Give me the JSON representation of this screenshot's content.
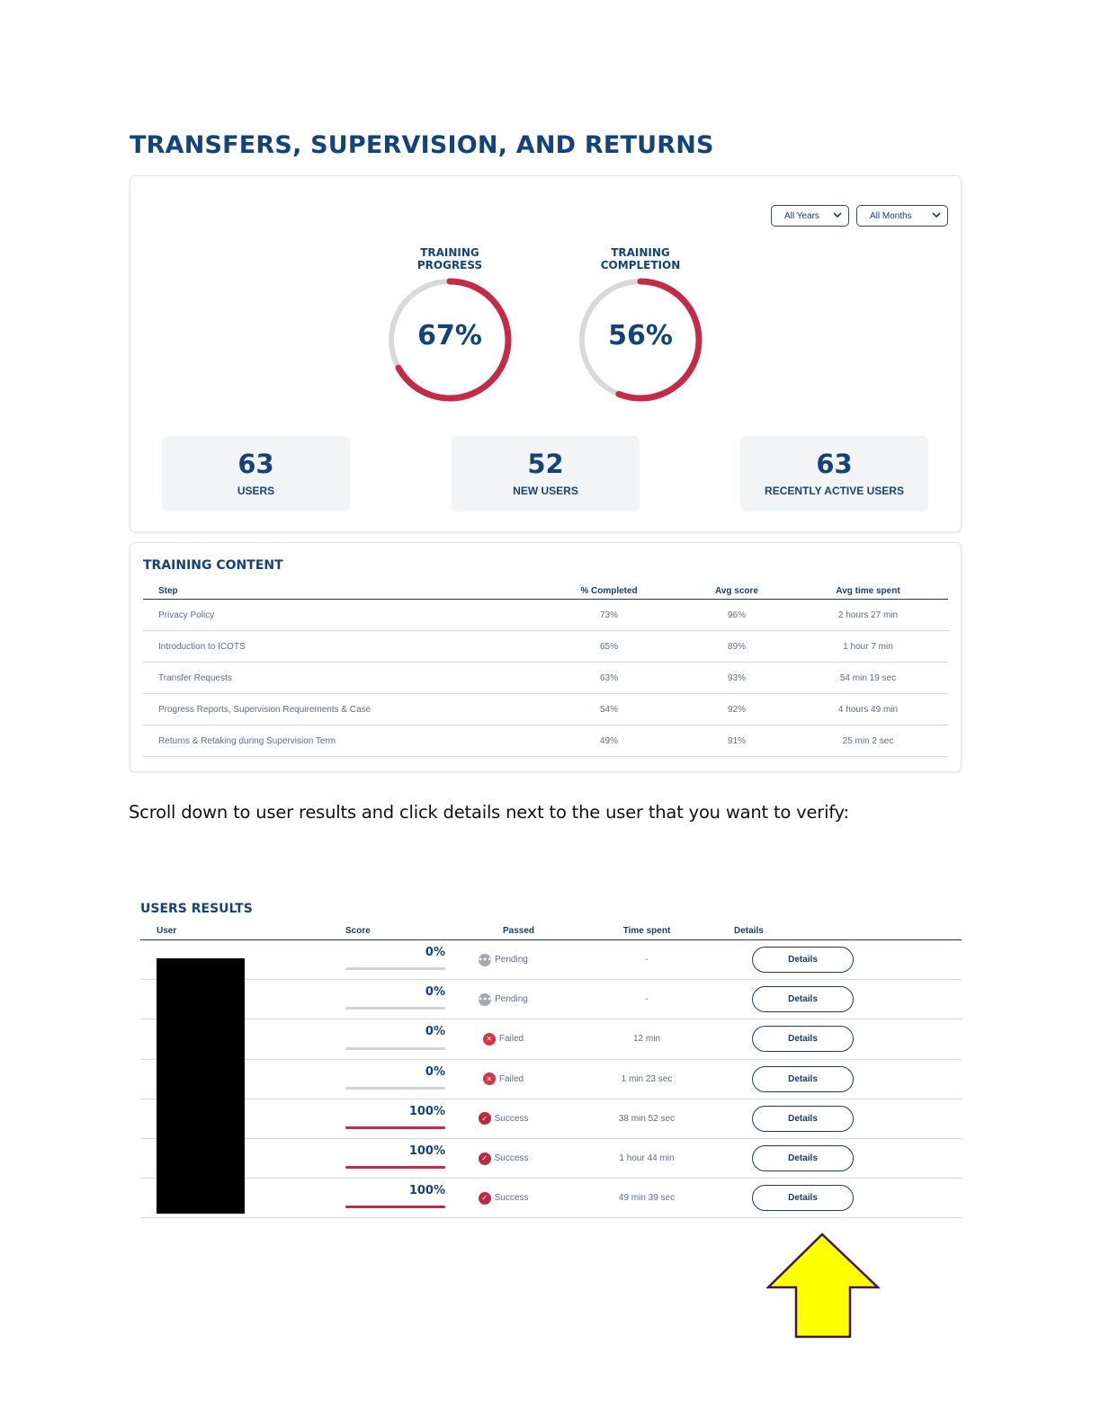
{
  "page": {
    "title": "TRANSFERS, SUPERVISION, AND RETURNS",
    "instruction": "Scroll down to user results and click details next to the user that you want to verify:"
  },
  "filters": {
    "years": "All Years",
    "months": "All Months"
  },
  "gauges": [
    {
      "label_line1": "TRAINING",
      "label_line2": "PROGRESS",
      "value_text": "67%",
      "value": 0.67
    },
    {
      "label_line1": "TRAINING",
      "label_line2": "COMPLETION",
      "value_text": "56%",
      "value": 0.56
    }
  ],
  "stats": [
    {
      "value": "63",
      "label": "USERS"
    },
    {
      "value": "52",
      "label": "NEW USERS"
    },
    {
      "value": "63",
      "label": "RECENTLY ACTIVE USERS"
    }
  ],
  "training_content": {
    "title": "TRAINING CONTENT",
    "columns": [
      "Step",
      "% Completed",
      "Avg score",
      "Avg time spent"
    ],
    "rows": [
      [
        "Privacy Policy",
        "73%",
        "96%",
        "2 hours 27 min"
      ],
      [
        "Introduction to ICOTS",
        "65%",
        "89%",
        "1 hour 7 min"
      ],
      [
        "Transfer Requests",
        "63%",
        "93%",
        "54 min 19 sec"
      ],
      [
        "Progress Reports, Supervision Requirements & Case",
        "54%",
        "92%",
        "4 hours 49 min"
      ],
      [
        "Returns & Retaking during Supervision Term",
        "49%",
        "91%",
        "25 min 2 sec"
      ]
    ]
  },
  "users_results": {
    "title": "USERS RESULTS",
    "columns": [
      "User",
      "Score",
      "Passed",
      "Time spent",
      "Details"
    ],
    "details_label": "Details",
    "rows": [
      {
        "score_text": "0%",
        "score": 0,
        "status": "Pending",
        "status_icon": "pending-icon",
        "time": "-"
      },
      {
        "score_text": "0%",
        "score": 0,
        "status": "Pending",
        "status_icon": "pending-icon",
        "time": "-"
      },
      {
        "score_text": "0%",
        "score": 0,
        "status": "Failed",
        "status_icon": "failed-icon",
        "time": "12 min"
      },
      {
        "score_text": "0%",
        "score": 0,
        "status": "Failed",
        "status_icon": "failed-icon",
        "time": "1 min 23 sec"
      },
      {
        "score_text": "100%",
        "score": 1,
        "status": "Success",
        "status_icon": "success-icon",
        "time": "38 min 52 sec"
      },
      {
        "score_text": "100%",
        "score": 1,
        "status": "Success",
        "status_icon": "success-icon",
        "time": "1 hour 44 min"
      },
      {
        "score_text": "100%",
        "score": 1,
        "status": "Success",
        "status_icon": "success-icon",
        "time": "49 min 39 sec"
      }
    ]
  },
  "colors": {
    "brand_navy": "#14427a",
    "accent_red": "#c42b46",
    "track_gray": "#d9d9d9",
    "arrow_yellow": "#ffff00",
    "arrow_outline": "#3a1a4a"
  }
}
